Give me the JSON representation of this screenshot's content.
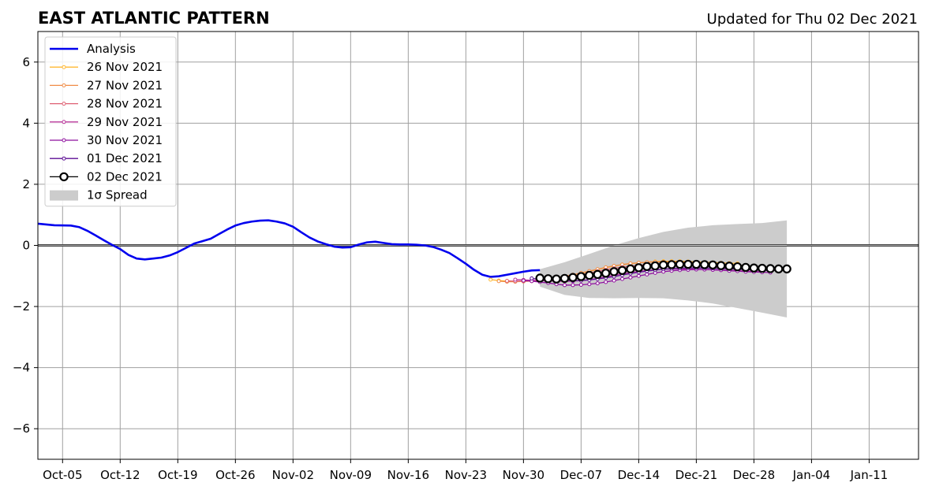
{
  "title": "EAST ATLANTIC PATTERN",
  "subtitle": "Updated for Thu 02 Dec 2021",
  "chart_data": {
    "type": "line",
    "title": "EAST ATLANTIC PATTERN",
    "xlabel": "",
    "ylabel": "",
    "xlim": [
      "2021-10-02",
      "2022-01-17"
    ],
    "ylim": [
      -7,
      7
    ],
    "yticks": [
      -6,
      -4,
      -2,
      0,
      2,
      4,
      6
    ],
    "ytick_labels": [
      "−6",
      "−4",
      "−2",
      "0",
      "2",
      "4",
      "6"
    ],
    "xticks": [
      "2021-10-05",
      "2021-10-12",
      "2021-10-19",
      "2021-10-26",
      "2021-11-02",
      "2021-11-09",
      "2021-11-16",
      "2021-11-23",
      "2021-11-30",
      "2021-12-07",
      "2021-12-14",
      "2021-12-21",
      "2021-12-28",
      "2022-01-04",
      "2022-01-11"
    ],
    "xtick_labels": [
      "Oct-05",
      "Oct-12",
      "Oct-19",
      "Oct-26",
      "Nov-02",
      "Nov-09",
      "Nov-16",
      "Nov-23",
      "Nov-30",
      "Dec-07",
      "Dec-14",
      "Dec-21",
      "Dec-28",
      "Jan-04",
      "Jan-11"
    ],
    "grid": true,
    "legend_position": "top-left",
    "zero_line": true,
    "series": [
      {
        "name": "Analysis",
        "color": "#0000ee",
        "style": "line",
        "x": [
          "2021-10-02",
          "2021-10-04",
          "2021-10-06",
          "2021-10-07",
          "2021-10-08",
          "2021-10-09",
          "2021-10-10",
          "2021-10-11",
          "2021-10-12",
          "2021-10-13",
          "2021-10-14",
          "2021-10-15",
          "2021-10-16",
          "2021-10-17",
          "2021-10-18",
          "2021-10-19",
          "2021-10-20",
          "2021-10-21",
          "2021-10-22",
          "2021-10-23",
          "2021-10-24",
          "2021-10-25",
          "2021-10-26",
          "2021-10-27",
          "2021-10-28",
          "2021-10-29",
          "2021-10-30",
          "2021-10-31",
          "2021-11-01",
          "2021-11-02",
          "2021-11-03",
          "2021-11-04",
          "2021-11-05",
          "2021-11-06",
          "2021-11-07",
          "2021-11-08",
          "2021-11-09",
          "2021-11-10",
          "2021-11-11",
          "2021-11-12",
          "2021-11-13",
          "2021-11-14",
          "2021-11-15",
          "2021-11-16",
          "2021-11-17",
          "2021-11-18",
          "2021-11-19",
          "2021-11-20",
          "2021-11-21",
          "2021-11-22",
          "2021-11-23",
          "2021-11-24",
          "2021-11-25",
          "2021-11-26",
          "2021-11-27",
          "2021-11-28",
          "2021-11-29",
          "2021-11-30",
          "2021-12-01",
          "2021-12-02"
        ],
        "values": [
          0.71,
          0.66,
          0.65,
          0.6,
          0.48,
          0.33,
          0.17,
          0.02,
          -0.12,
          -0.31,
          -0.43,
          -0.46,
          -0.43,
          -0.4,
          -0.33,
          -0.22,
          -0.08,
          0.06,
          0.14,
          0.22,
          0.37,
          0.52,
          0.65,
          0.73,
          0.78,
          0.81,
          0.82,
          0.78,
          0.72,
          0.61,
          0.43,
          0.26,
          0.13,
          0.04,
          -0.04,
          -0.07,
          -0.06,
          0.03,
          0.1,
          0.12,
          0.08,
          0.04,
          0.03,
          0.03,
          0.02,
          0.0,
          -0.05,
          -0.14,
          -0.25,
          -0.42,
          -0.6,
          -0.8,
          -0.96,
          -1.03,
          -1.01,
          -0.96,
          -0.91,
          -0.86,
          -0.82,
          -0.81
        ]
      },
      {
        "name": "26 Nov 2021",
        "color": "#ffb833",
        "style": "small-markers",
        "x": [
          "2021-11-26",
          "2021-11-27",
          "2021-11-28",
          "2021-11-29",
          "2021-11-30",
          "2021-12-01",
          "2021-12-02",
          "2021-12-03",
          "2021-12-04",
          "2021-12-05",
          "2021-12-06",
          "2021-12-07",
          "2021-12-08",
          "2021-12-09",
          "2021-12-10",
          "2021-12-11",
          "2021-12-12",
          "2021-12-13",
          "2021-12-14",
          "2021-12-15",
          "2021-12-16",
          "2021-12-17",
          "2021-12-18",
          "2021-12-19",
          "2021-12-20",
          "2021-12-21",
          "2021-12-22",
          "2021-12-23",
          "2021-12-24",
          "2021-12-25",
          "2021-12-26"
        ],
        "values": [
          -1.12,
          -1.15,
          -1.17,
          -1.18,
          -1.18,
          -1.17,
          -1.14,
          -1.1,
          -1.06,
          -1.02,
          -0.97,
          -0.91,
          -0.85,
          -0.79,
          -0.73,
          -0.68,
          -0.63,
          -0.6,
          -0.57,
          -0.55,
          -0.53,
          -0.52,
          -0.52,
          -0.52,
          -0.53,
          -0.54,
          -0.55,
          -0.56,
          -0.57,
          -0.58,
          -0.59
        ]
      },
      {
        "name": "27 Nov 2021",
        "color": "#f08c46",
        "style": "small-markers",
        "x": [
          "2021-11-27",
          "2021-11-28",
          "2021-11-29",
          "2021-11-30",
          "2021-12-01",
          "2021-12-02",
          "2021-12-03",
          "2021-12-04",
          "2021-12-05",
          "2021-12-06",
          "2021-12-07",
          "2021-12-08",
          "2021-12-09",
          "2021-12-10",
          "2021-12-11",
          "2021-12-12",
          "2021-12-13",
          "2021-12-14",
          "2021-12-15",
          "2021-12-16",
          "2021-12-17",
          "2021-12-18",
          "2021-12-19",
          "2021-12-20",
          "2021-12-21",
          "2021-12-22",
          "2021-12-23",
          "2021-12-24",
          "2021-12-25",
          "2021-12-26",
          "2021-12-27"
        ],
        "values": [
          -1.17,
          -1.19,
          -1.19,
          -1.18,
          -1.16,
          -1.13,
          -1.1,
          -1.06,
          -1.01,
          -0.96,
          -0.9,
          -0.84,
          -0.78,
          -0.72,
          -0.67,
          -0.63,
          -0.59,
          -0.57,
          -0.55,
          -0.54,
          -0.54,
          -0.54,
          -0.55,
          -0.56,
          -0.57,
          -0.59,
          -0.6,
          -0.62,
          -0.63,
          -0.65,
          -0.66
        ]
      },
      {
        "name": "28 Nov 2021",
        "color": "#de5f72",
        "style": "small-markers",
        "x": [
          "2021-11-28",
          "2021-11-29",
          "2021-11-30",
          "2021-12-01",
          "2021-12-02",
          "2021-12-03",
          "2021-12-04",
          "2021-12-05",
          "2021-12-06",
          "2021-12-07",
          "2021-12-08",
          "2021-12-09",
          "2021-12-10",
          "2021-12-11",
          "2021-12-12",
          "2021-12-13",
          "2021-12-14",
          "2021-12-15",
          "2021-12-16",
          "2021-12-17",
          "2021-12-18",
          "2021-12-19",
          "2021-12-20",
          "2021-12-21",
          "2021-12-22",
          "2021-12-23",
          "2021-12-24",
          "2021-12-25",
          "2021-12-26",
          "2021-12-27",
          "2021-12-28"
        ],
        "values": [
          -1.16,
          -1.17,
          -1.17,
          -1.16,
          -1.15,
          -1.13,
          -1.1,
          -1.06,
          -1.01,
          -0.96,
          -0.9,
          -0.85,
          -0.8,
          -0.75,
          -0.71,
          -0.68,
          -0.65,
          -0.63,
          -0.62,
          -0.62,
          -0.62,
          -0.63,
          -0.64,
          -0.66,
          -0.68,
          -0.7,
          -0.72,
          -0.74,
          -0.75,
          -0.77,
          -0.78
        ]
      },
      {
        "name": "29 Nov 2021",
        "color": "#b8369a",
        "style": "small-markers",
        "x": [
          "2021-11-29",
          "2021-11-30",
          "2021-12-01",
          "2021-12-02",
          "2021-12-03",
          "2021-12-04",
          "2021-12-05",
          "2021-12-06",
          "2021-12-07",
          "2021-12-08",
          "2021-12-09",
          "2021-12-10",
          "2021-12-11",
          "2021-12-12",
          "2021-12-13",
          "2021-12-14",
          "2021-12-15",
          "2021-12-16",
          "2021-12-17",
          "2021-12-18",
          "2021-12-19",
          "2021-12-20",
          "2021-12-21",
          "2021-12-22",
          "2021-12-23",
          "2021-12-24",
          "2021-12-25",
          "2021-12-26",
          "2021-12-27",
          "2021-12-28",
          "2021-12-29"
        ],
        "values": [
          -1.12,
          -1.13,
          -1.14,
          -1.15,
          -1.16,
          -1.17,
          -1.18,
          -1.17,
          -1.15,
          -1.12,
          -1.08,
          -1.03,
          -0.98,
          -0.93,
          -0.89,
          -0.85,
          -0.82,
          -0.8,
          -0.78,
          -0.77,
          -0.77,
          -0.77,
          -0.78,
          -0.79,
          -0.8,
          -0.81,
          -0.82,
          -0.83,
          -0.84,
          -0.85,
          -0.86
        ]
      },
      {
        "name": "30 Nov 2021",
        "color": "#8e0f9e",
        "style": "small-markers",
        "x": [
          "2021-11-30",
          "2021-12-01",
          "2021-12-02",
          "2021-12-03",
          "2021-12-04",
          "2021-12-05",
          "2021-12-06",
          "2021-12-07",
          "2021-12-08",
          "2021-12-09",
          "2021-12-10",
          "2021-12-11",
          "2021-12-12",
          "2021-12-13",
          "2021-12-14",
          "2021-12-15",
          "2021-12-16",
          "2021-12-17",
          "2021-12-18",
          "2021-12-19",
          "2021-12-20",
          "2021-12-21",
          "2021-12-22",
          "2021-12-23",
          "2021-12-24",
          "2021-12-25",
          "2021-12-26",
          "2021-12-27",
          "2021-12-28",
          "2021-12-29",
          "2021-12-30"
        ],
        "values": [
          -1.15,
          -1.17,
          -1.2,
          -1.23,
          -1.27,
          -1.3,
          -1.3,
          -1.29,
          -1.27,
          -1.24,
          -1.2,
          -1.15,
          -1.1,
          -1.05,
          -1.0,
          -0.95,
          -0.9,
          -0.86,
          -0.83,
          -0.81,
          -0.8,
          -0.79,
          -0.79,
          -0.8,
          -0.81,
          -0.83,
          -0.84,
          -0.86,
          -0.87,
          -0.88,
          -0.89
        ]
      },
      {
        "name": "01 Dec 2021",
        "color": "#5c0e94",
        "style": "small-markers",
        "x": [
          "2021-12-01",
          "2021-12-02",
          "2021-12-03",
          "2021-12-04",
          "2021-12-05",
          "2021-12-06",
          "2021-12-07",
          "2021-12-08",
          "2021-12-09",
          "2021-12-10",
          "2021-12-11",
          "2021-12-12",
          "2021-12-13",
          "2021-12-14",
          "2021-12-15",
          "2021-12-16",
          "2021-12-17",
          "2021-12-18",
          "2021-12-19",
          "2021-12-20",
          "2021-12-21",
          "2021-12-22",
          "2021-12-23",
          "2021-12-24",
          "2021-12-25",
          "2021-12-26",
          "2021-12-27",
          "2021-12-28",
          "2021-12-29",
          "2021-12-30",
          "2021-12-31"
        ],
        "values": [
          -1.08,
          -1.11,
          -1.13,
          -1.15,
          -1.16,
          -1.16,
          -1.15,
          -1.13,
          -1.1,
          -1.06,
          -1.02,
          -0.97,
          -0.92,
          -0.88,
          -0.84,
          -0.81,
          -0.78,
          -0.76,
          -0.75,
          -0.74,
          -0.74,
          -0.74,
          -0.75,
          -0.76,
          -0.77,
          -0.78,
          -0.79,
          -0.8,
          -0.81,
          -0.82,
          -0.82
        ]
      },
      {
        "name": "02 Dec 2021",
        "color": "#000000",
        "style": "large-markers",
        "x": [
          "2021-12-02",
          "2021-12-03",
          "2021-12-04",
          "2021-12-05",
          "2021-12-06",
          "2021-12-07",
          "2021-12-08",
          "2021-12-09",
          "2021-12-10",
          "2021-12-11",
          "2021-12-12",
          "2021-12-13",
          "2021-12-14",
          "2021-12-15",
          "2021-12-16",
          "2021-12-17",
          "2021-12-18",
          "2021-12-19",
          "2021-12-20",
          "2021-12-21",
          "2021-12-22",
          "2021-12-23",
          "2021-12-24",
          "2021-12-25",
          "2021-12-26",
          "2021-12-27",
          "2021-12-28",
          "2021-12-29",
          "2021-12-30",
          "2021-12-31",
          "2022-01-01"
        ],
        "values": [
          -1.07,
          -1.09,
          -1.1,
          -1.08,
          -1.05,
          -1.02,
          -0.98,
          -0.95,
          -0.91,
          -0.86,
          -0.82,
          -0.77,
          -0.73,
          -0.69,
          -0.67,
          -0.64,
          -0.63,
          -0.62,
          -0.62,
          -0.62,
          -0.63,
          -0.64,
          -0.66,
          -0.68,
          -0.7,
          -0.72,
          -0.74,
          -0.75,
          -0.76,
          -0.77,
          -0.77
        ]
      }
    ],
    "spread": {
      "name": "1σ Spread",
      "color": "#cccccc",
      "x": [
        "2021-12-02",
        "2021-12-05",
        "2021-12-08",
        "2021-12-11",
        "2021-12-14",
        "2021-12-17",
        "2021-12-20",
        "2021-12-23",
        "2021-12-26",
        "2021-12-29",
        "2022-01-01"
      ],
      "upper": [
        -0.78,
        -0.55,
        -0.28,
        0.0,
        0.24,
        0.44,
        0.58,
        0.66,
        0.7,
        0.73,
        0.82
      ],
      "lower": [
        -1.35,
        -1.62,
        -1.72,
        -1.73,
        -1.72,
        -1.73,
        -1.8,
        -1.9,
        -2.05,
        -2.2,
        -2.36
      ]
    }
  }
}
